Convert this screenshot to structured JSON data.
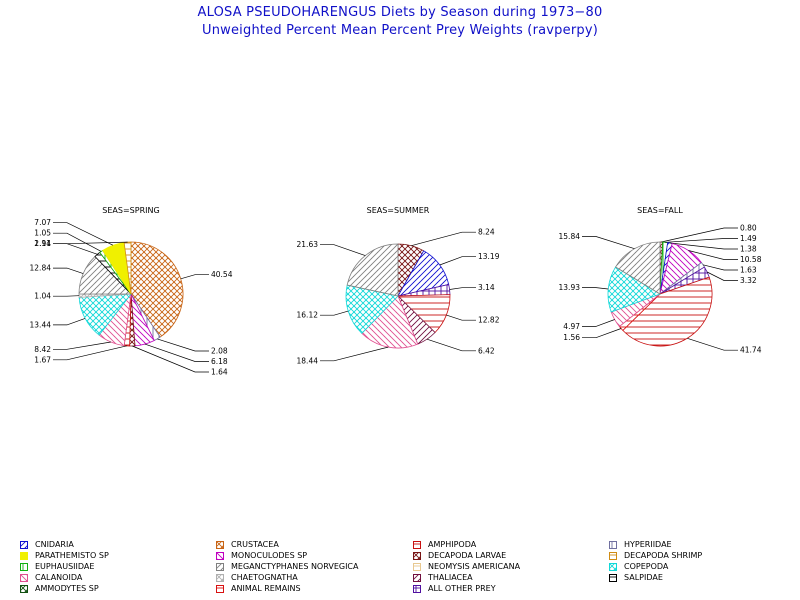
{
  "header": {
    "title": "ALOSA PSEUDOHARENGUS Diets by Season during 1973−80",
    "subtitle": "Unweighted Percent Mean Percent Prey  Weights (ravperpy)"
  },
  "categories": [
    {
      "name": "CNIDARIA",
      "color": "#1010d0",
      "pattern": "diag-up"
    },
    {
      "name": "CRUSTACEA",
      "color": "#c86414",
      "pattern": "cross-diag"
    },
    {
      "name": "AMPHIPODA",
      "color": "#c81010",
      "pattern": "horizontal"
    },
    {
      "name": "HYPERIIDAE",
      "color": "#7070a0",
      "pattern": "vertical"
    },
    {
      "name": "PARATHEMISTO SP",
      "color": "#f0f000",
      "pattern": "solid"
    },
    {
      "name": "MONOCULODES SP",
      "color": "#c000c0",
      "pattern": "diag-down"
    },
    {
      "name": "DECAPODA LARVAE",
      "color": "#781414",
      "pattern": "cross-diag"
    },
    {
      "name": "DECAPODA SHRIMP",
      "color": "#d08c14",
      "pattern": "horizontal"
    },
    {
      "name": "EUPHAUSIIDAE",
      "color": "#10b010",
      "pattern": "vertical"
    },
    {
      "name": "MEGANCTYPHANES NORVEGICA",
      "color": "#808080",
      "pattern": "diag-up"
    },
    {
      "name": "NEOMYSIS AMERICANA",
      "color": "#e8c890",
      "pattern": "horizontal"
    },
    {
      "name": "COPEPODA",
      "color": "#10d8d8",
      "pattern": "cross-diag"
    },
    {
      "name": "CALANOIDA",
      "color": "#e05090",
      "pattern": "diag-down"
    },
    {
      "name": "CHAETOGNATHA",
      "color": "#b0b0b0",
      "pattern": "cross-diag"
    },
    {
      "name": "THALIACEA",
      "color": "#701040",
      "pattern": "diag-up"
    },
    {
      "name": "SALPIDAE",
      "color": "#000000",
      "pattern": "horizontal"
    },
    {
      "name": "AMMODYTES SP",
      "color": "#105010",
      "pattern": "cross-diag"
    },
    {
      "name": "ANIMAL REMAINS",
      "color": "#d81010",
      "pattern": "horizontal"
    },
    {
      "name": "ALL OTHER PREY",
      "color": "#5010a0",
      "pattern": "grid"
    }
  ],
  "chart_data": [
    {
      "type": "pie",
      "title": "SEAS=SPRING",
      "slices": [
        {
          "category": "CRUSTACEA",
          "value": 40.54,
          "label": "40.54"
        },
        {
          "category": "HYPERIIDAE",
          "value": 2.08,
          "label": "2.08"
        },
        {
          "category": "MONOCULODES SP",
          "value": 6.18,
          "label": "6.18"
        },
        {
          "category": "DECAPODA LARVAE",
          "value": 1.64,
          "label": "1.64"
        },
        {
          "category": "AMPHIPODA",
          "value": 1.67,
          "label": "1.67"
        },
        {
          "category": "CALANOIDA",
          "value": 8.42,
          "label": "8.42"
        },
        {
          "category": "COPEPODA",
          "value": 13.44,
          "label": "13.44"
        },
        {
          "category": "CHAETOGNATHA",
          "value": 1.04,
          "label": "1.04"
        },
        {
          "category": "MEGANCTYPHANES NORVEGICA",
          "value": 12.84,
          "label": "12.84"
        },
        {
          "category": "SALPIDAE",
          "value": 1.94,
          "label": "1.94"
        },
        {
          "category": "EUPHAUSIIDAE",
          "value": 1.05,
          "label": "1.05"
        },
        {
          "category": "PARATHEMISTO SP",
          "value": 7.07,
          "label": "7.07"
        },
        {
          "category": "DECAPODA SHRIMP",
          "value": 2.11,
          "label": "2.11"
        }
      ]
    },
    {
      "type": "pie",
      "title": "SEAS=SUMMER",
      "slices": [
        {
          "category": "DECAPODA LARVAE",
          "value": 8.24,
          "label": "8.24"
        },
        {
          "category": "CNIDARIA",
          "value": 13.19,
          "label": "13.19"
        },
        {
          "category": "ALL OTHER PREY",
          "value": 3.14,
          "label": "3.14"
        },
        {
          "category": "AMPHIPODA",
          "value": 12.82,
          "label": "12.82"
        },
        {
          "category": "THALIACEA",
          "value": 6.42,
          "label": "6.42"
        },
        {
          "category": "CALANOIDA",
          "value": 18.44,
          "label": "18.44"
        },
        {
          "category": "COPEPODA",
          "value": 16.12,
          "label": "16.12"
        },
        {
          "category": "MEGANCTYPHANES NORVEGICA",
          "value": 21.63,
          "label": "21.63"
        }
      ]
    },
    {
      "type": "pie",
      "title": "SEAS=FALL",
      "slices": [
        {
          "category": "DECAPODA LARVAE",
          "value": 0.8,
          "label": "0.80"
        },
        {
          "category": "EUPHAUSIIDAE",
          "value": 1.49,
          "label": "1.49"
        },
        {
          "category": "CNIDARIA",
          "value": 1.38,
          "label": "1.38"
        },
        {
          "category": "MONOCULODES SP",
          "value": 10.58,
          "label": "10.58"
        },
        {
          "category": "HYPERIIDAE",
          "value": 1.63,
          "label": "1.63"
        },
        {
          "category": "ALL OTHER PREY",
          "value": 3.32,
          "label": "3.32"
        },
        {
          "category": "AMPHIPODA",
          "value": 41.74,
          "label": "41.74"
        },
        {
          "category": "ANIMAL REMAINS",
          "value": 1.56,
          "label": "1.56"
        },
        {
          "category": "CALANOIDA",
          "value": 4.97,
          "label": "4.97"
        },
        {
          "category": "COPEPODA",
          "value": 13.93,
          "label": "13.93"
        },
        {
          "category": "MEGANCTYPHANES NORVEGICA",
          "value": 15.84,
          "label": "15.84"
        }
      ]
    }
  ]
}
